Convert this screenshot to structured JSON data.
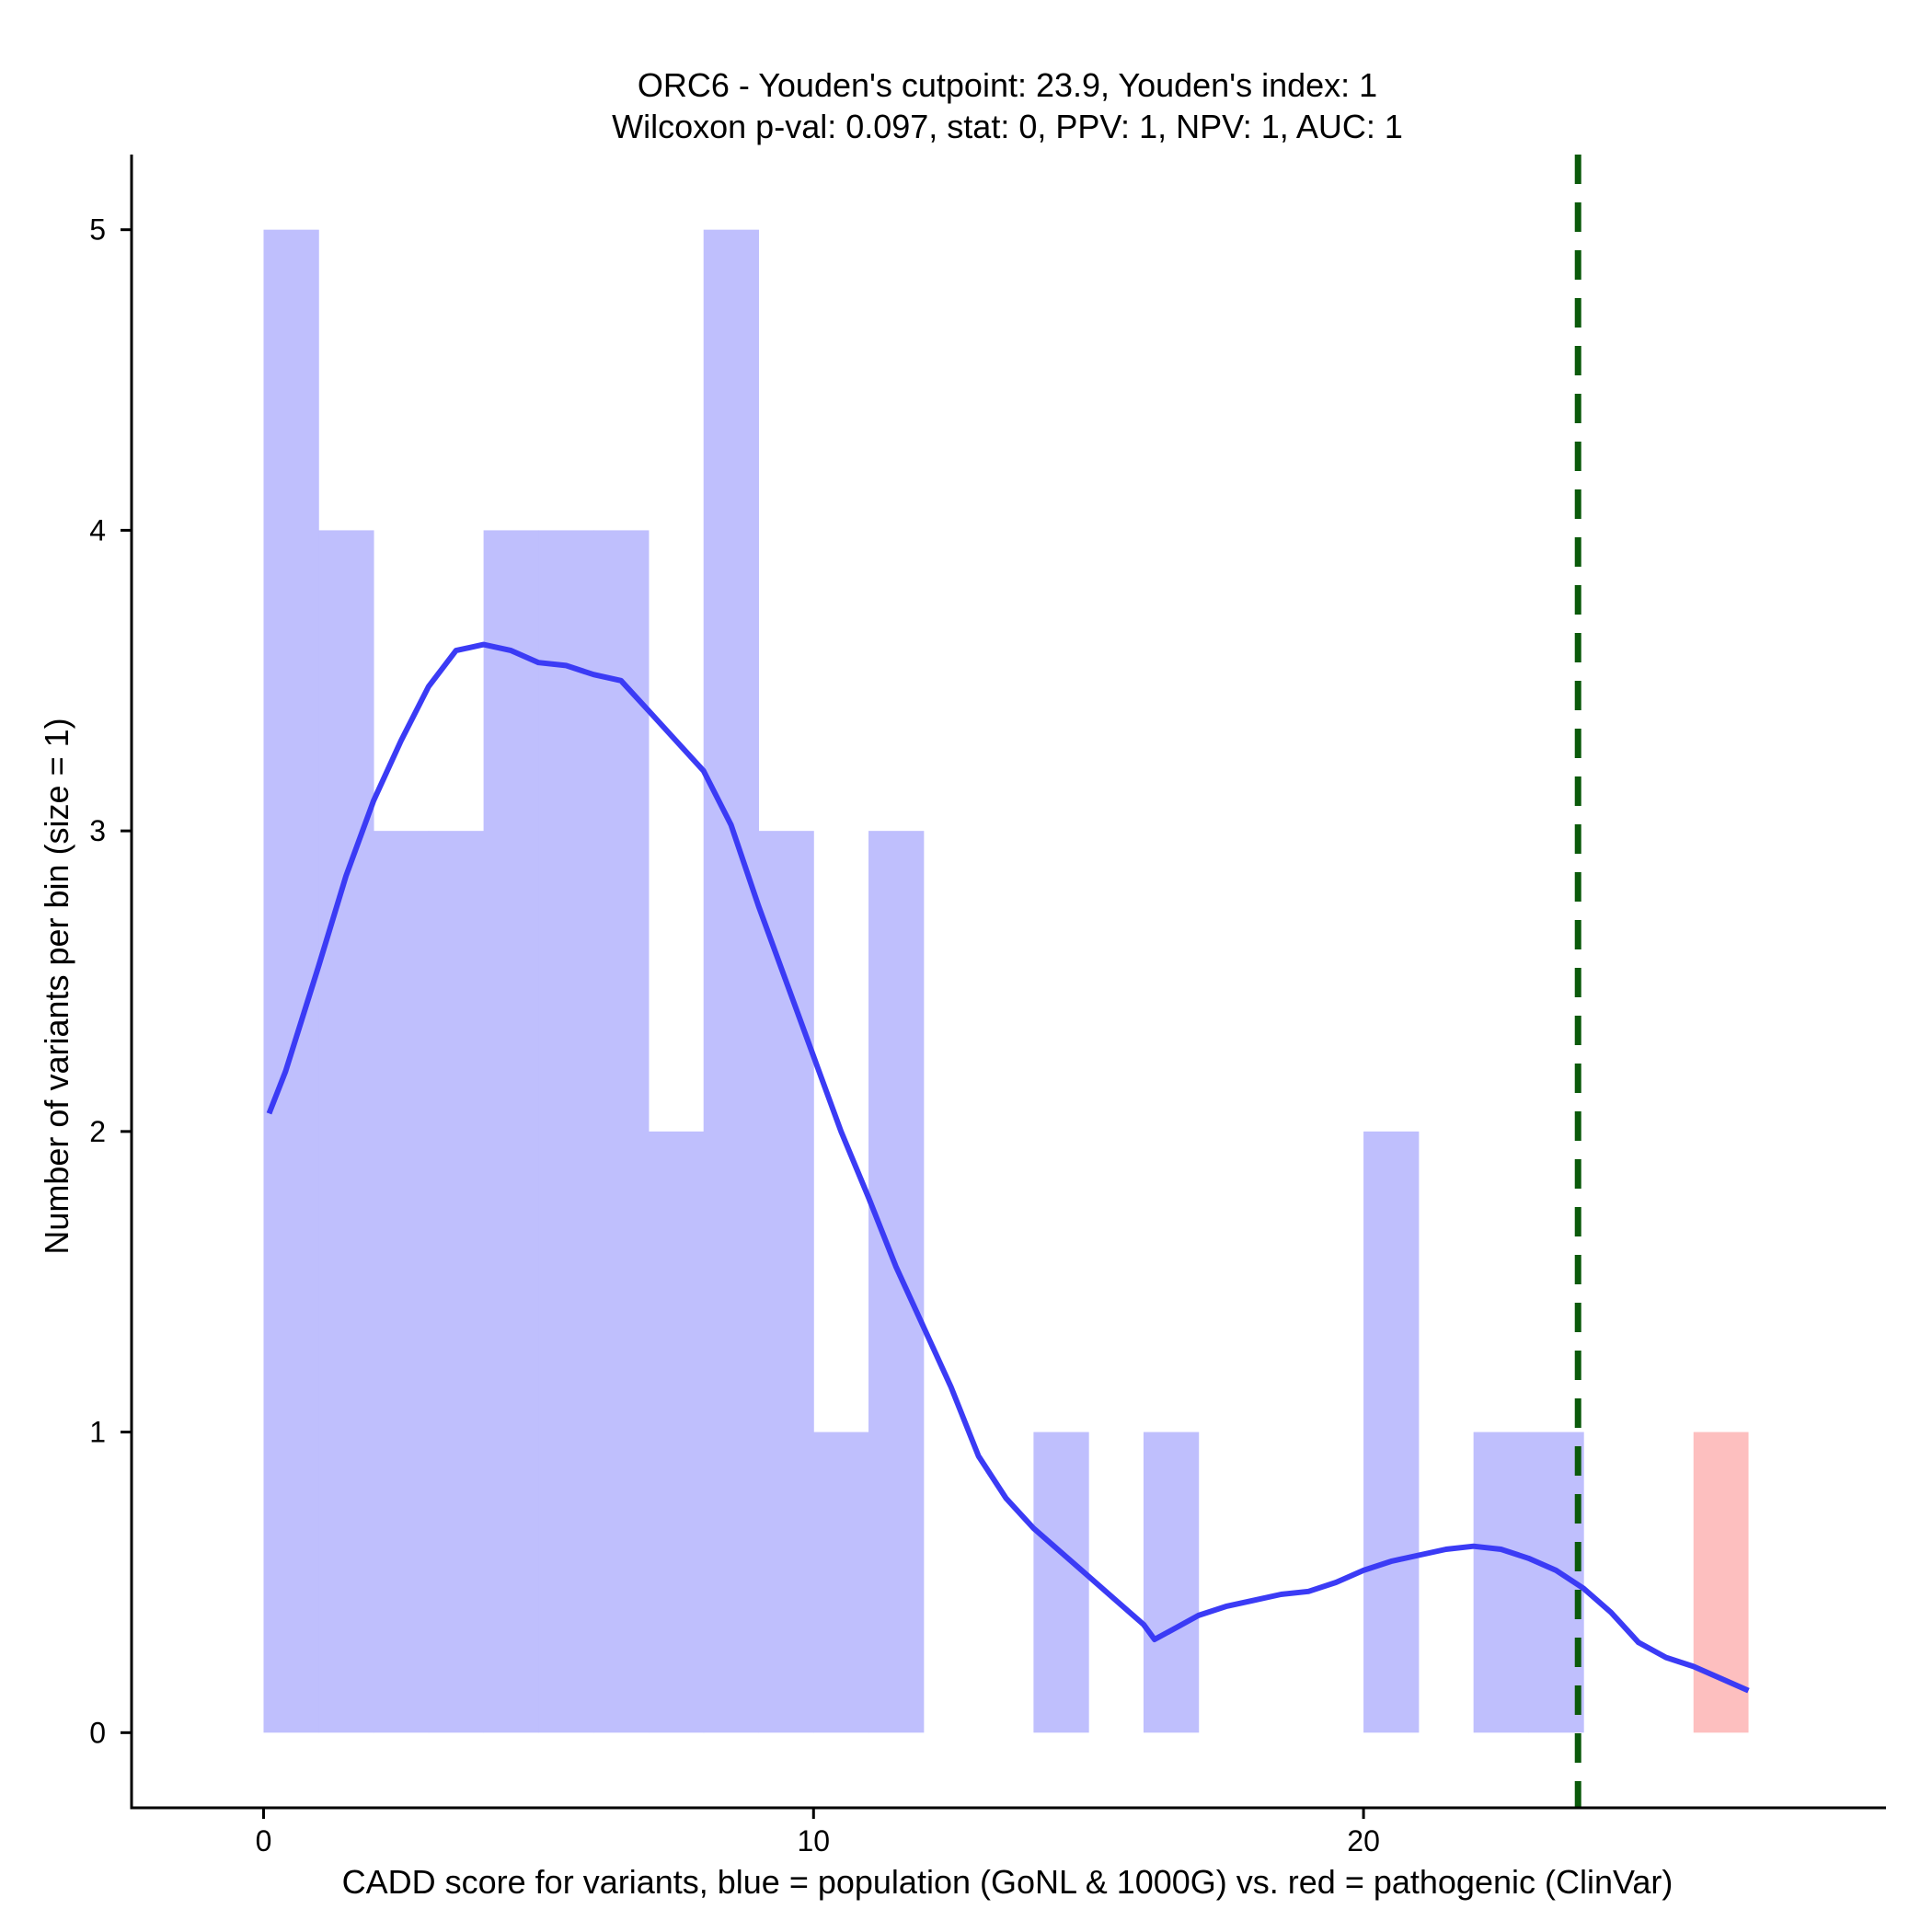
{
  "chart_data": {
    "type": "bar",
    "title": "ORC6 - Youden's cutpoint: 23.9, Youden's index: 1",
    "subtitle": "Wilcoxon p-val: 0.097, stat: 0, PPV: 1, NPV: 1, AUC: 1",
    "xlabel": "CADD score for variants, blue = population (GoNL & 1000G) vs. red = pathogenic (ClinVar)",
    "ylabel": "Number of variants per bin (size = 1)",
    "xlim": [
      -2.4,
      29.5
    ],
    "ylim": [
      -0.25,
      5.25
    ],
    "xticks": [
      0,
      10,
      20
    ],
    "yticks": [
      0,
      1,
      2,
      3,
      4,
      5
    ],
    "grid": false,
    "bin_width": 1,
    "colors": {
      "population": "#bfbffd",
      "pathogenic": "#fdbfbf",
      "density": "#3b3bf5",
      "cutpoint": "#0b5a0b"
    },
    "population_bins": [
      {
        "x0": 0,
        "count": 5
      },
      {
        "x0": 1,
        "count": 4
      },
      {
        "x0": 2,
        "count": 3
      },
      {
        "x0": 3,
        "count": 3
      },
      {
        "x0": 4,
        "count": 4
      },
      {
        "x0": 5,
        "count": 4
      },
      {
        "x0": 6,
        "count": 4
      },
      {
        "x0": 7,
        "count": 2
      },
      {
        "x0": 8,
        "count": 5
      },
      {
        "x0": 9,
        "count": 3
      },
      {
        "x0": 10,
        "count": 1
      },
      {
        "x0": 11,
        "count": 3
      },
      {
        "x0": 14,
        "count": 1
      },
      {
        "x0": 16,
        "count": 1
      },
      {
        "x0": 20,
        "count": 2
      },
      {
        "x0": 22,
        "count": 1
      },
      {
        "x0": 23,
        "count": 1
      }
    ],
    "pathogenic_bins": [
      {
        "x0": 26,
        "count": 1
      }
    ],
    "cutpoint": 23.9,
    "density_curve": [
      [
        0.1,
        2.06
      ],
      [
        0.4,
        2.2
      ],
      [
        1,
        2.55
      ],
      [
        1.5,
        2.85
      ],
      [
        2,
        3.1
      ],
      [
        2.5,
        3.3
      ],
      [
        3,
        3.48
      ],
      [
        3.5,
        3.6
      ],
      [
        4,
        3.62
      ],
      [
        4.5,
        3.6
      ],
      [
        5,
        3.56
      ],
      [
        5.5,
        3.55
      ],
      [
        6,
        3.52
      ],
      [
        6.5,
        3.5
      ],
      [
        7,
        3.4
      ],
      [
        7.5,
        3.3
      ],
      [
        8,
        3.2
      ],
      [
        8.5,
        3.02
      ],
      [
        9,
        2.75
      ],
      [
        9.5,
        2.5
      ],
      [
        10,
        2.25
      ],
      [
        10.5,
        2.0
      ],
      [
        11,
        1.78
      ],
      [
        11.5,
        1.55
      ],
      [
        12,
        1.35
      ],
      [
        12.5,
        1.15
      ],
      [
        13,
        0.92
      ],
      [
        13.5,
        0.78
      ],
      [
        14,
        0.68
      ],
      [
        14.5,
        0.6
      ],
      [
        15,
        0.52
      ],
      [
        15.5,
        0.44
      ],
      [
        16,
        0.36
      ],
      [
        16.2,
        0.31
      ],
      [
        16.5,
        0.34
      ],
      [
        17,
        0.39
      ],
      [
        17.5,
        0.42
      ],
      [
        18,
        0.44
      ],
      [
        18.5,
        0.46
      ],
      [
        19,
        0.47
      ],
      [
        19.5,
        0.5
      ],
      [
        20,
        0.54
      ],
      [
        20.5,
        0.57
      ],
      [
        21,
        0.59
      ],
      [
        21.5,
        0.61
      ],
      [
        22,
        0.62
      ],
      [
        22.5,
        0.61
      ],
      [
        23,
        0.58
      ],
      [
        23.5,
        0.54
      ],
      [
        24,
        0.48
      ],
      [
        24.5,
        0.4
      ],
      [
        25,
        0.3
      ],
      [
        25.5,
        0.25
      ],
      [
        26,
        0.22
      ],
      [
        26.5,
        0.18
      ],
      [
        27,
        0.14
      ]
    ]
  }
}
